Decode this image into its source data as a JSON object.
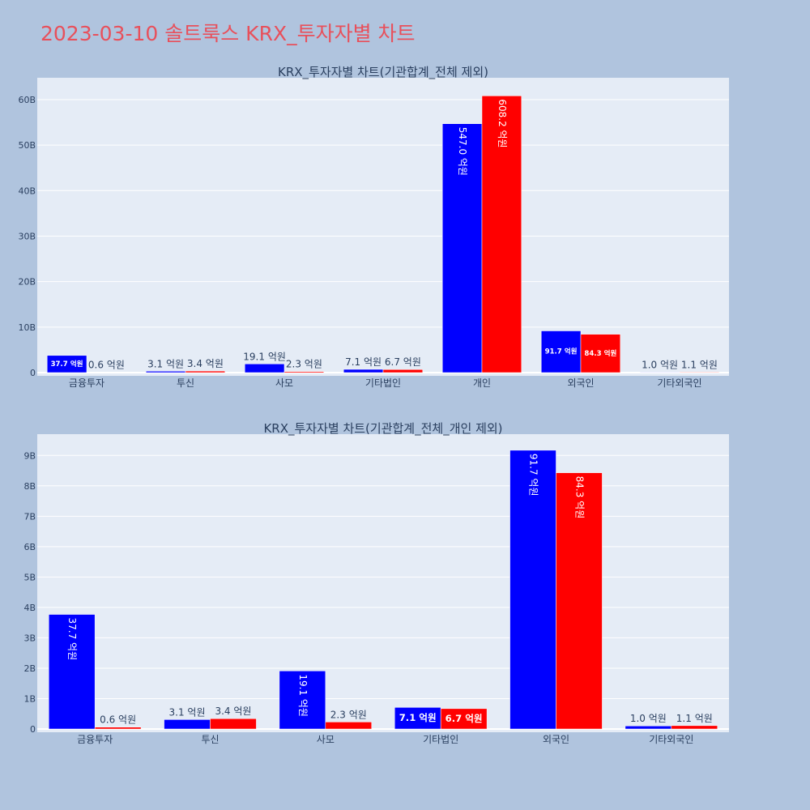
{
  "page_title": "2023-03-10 솔트룩스 KRX_투자자별 차트",
  "colors": {
    "buy": "#0000ff",
    "sell": "#ff0000",
    "plot_bg": "#e5ecf6",
    "page_bg": "#b0c4de",
    "title": "#e8505b"
  },
  "chart_data": [
    {
      "type": "bar",
      "title": "KRX_투자자별 차트(기관합계_전체 제외)",
      "categories": [
        "금융투자",
        "투신",
        "사모",
        "기타법인",
        "개인",
        "외국인",
        "기타외국인"
      ],
      "series": [
        {
          "color": "#0000ff",
          "values": [
            3770000000,
            310000000,
            1910000000,
            710000000,
            54700000000,
            9170000000,
            100000000
          ],
          "labels": [
            "37.7 억원",
            "3.1 억원",
            "19.1 억원",
            "7.1 억원",
            "547.0 억원",
            "91.7 억원",
            "1.0 억원"
          ]
        },
        {
          "color": "#ff0000",
          "values": [
            60000000,
            340000000,
            230000000,
            670000000,
            60820000000,
            8430000000,
            110000000
          ],
          "labels": [
            "0.6 억원",
            "3.4 억원",
            "2.3 억원",
            "6.7 억원",
            "608.2 억원",
            "84.3 억원",
            "1.1 억원"
          ]
        }
      ],
      "yticks": [
        0,
        10000000000,
        20000000000,
        30000000000,
        40000000000,
        50000000000,
        60000000000
      ],
      "ytick_labels": [
        "0",
        "10B",
        "20B",
        "30B",
        "40B",
        "50B",
        "60B"
      ],
      "ylim": [
        0,
        64800000000
      ],
      "grid": true,
      "legend": "none"
    },
    {
      "type": "bar",
      "title": "KRX_투자자별 차트(기관합계_전체_개인 제외)",
      "categories": [
        "금융투자",
        "투신",
        "사모",
        "기타법인",
        "외국인",
        "기타외국인"
      ],
      "series": [
        {
          "color": "#0000ff",
          "values": [
            3770000000,
            310000000,
            1910000000,
            710000000,
            9170000000,
            100000000
          ],
          "labels": [
            "37.7 억원",
            "3.1 억원",
            "19.1 억원",
            "7.1 억원",
            "91.7 억원",
            "1.0 억원"
          ]
        },
        {
          "color": "#ff0000",
          "values": [
            60000000,
            340000000,
            230000000,
            670000000,
            8430000000,
            110000000
          ],
          "labels": [
            "0.6 억원",
            "3.4 억원",
            "2.3 억원",
            "6.7 억원",
            "84.3 억원",
            "1.1 억원"
          ]
        }
      ],
      "yticks": [
        0,
        1000000000,
        2000000000,
        3000000000,
        4000000000,
        5000000000,
        6000000000,
        7000000000,
        8000000000,
        9000000000
      ],
      "ytick_labels": [
        "0",
        "1B",
        "2B",
        "3B",
        "4B",
        "5B",
        "6B",
        "7B",
        "8B",
        "9B"
      ],
      "ylim": [
        0,
        9700000000
      ],
      "grid": true,
      "legend": "none"
    }
  ]
}
